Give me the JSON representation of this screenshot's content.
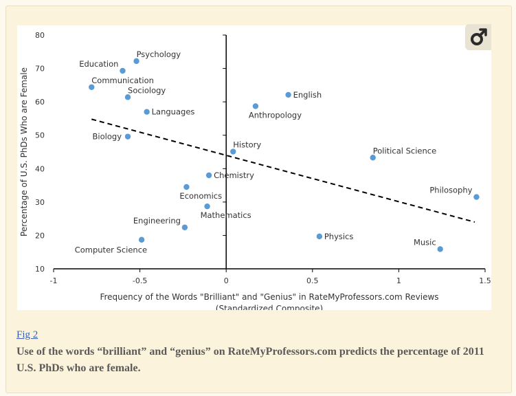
{
  "colors": {
    "point": "#5b9bd5",
    "axis": "#000000",
    "trend": "#000000",
    "caption_text": "#5a5a5a",
    "link": "#3a5ea8"
  },
  "badge": {
    "icon": "external-link-icon"
  },
  "chart_data": {
    "type": "scatter",
    "title": "",
    "xlabel_line1": "Frequency of the Words \"Brilliant\" and \"Genius\" in RateMyProfessors.com Reviews",
    "xlabel_line2": "(Standardized Composite)",
    "ylabel": "Percentage of U.S. PhDs Who are Female",
    "xlim": [
      -1,
      1.5
    ],
    "ylim": [
      10,
      80
    ],
    "xticks": [
      -1,
      -0.5,
      0,
      0.5,
      1,
      1.5
    ],
    "xtick_labels": [
      "-1",
      "-0.5",
      "0",
      "0.5",
      "1",
      "1.5"
    ],
    "yticks": [
      10,
      20,
      30,
      40,
      50,
      60,
      70,
      80
    ],
    "ytick_labels": [
      "10",
      "20",
      "30",
      "40",
      "50",
      "60",
      "70",
      "80"
    ],
    "points": [
      {
        "label": "Psychology",
        "x": -0.52,
        "y": 72.2,
        "anchor": "above-right"
      },
      {
        "label": "Education",
        "x": -0.6,
        "y": 69.3,
        "anchor": "above-left"
      },
      {
        "label": "Communication",
        "x": -0.78,
        "y": 64.4,
        "anchor": "above-right"
      },
      {
        "label": "Sociology",
        "x": -0.57,
        "y": 61.4,
        "anchor": "above-right"
      },
      {
        "label": "Languages",
        "x": -0.46,
        "y": 57.0,
        "anchor": "right"
      },
      {
        "label": "Biology",
        "x": -0.57,
        "y": 49.6,
        "anchor": "left"
      },
      {
        "label": "English",
        "x": 0.36,
        "y": 62.1,
        "anchor": "right"
      },
      {
        "label": "Anthropology",
        "x": 0.17,
        "y": 58.7,
        "anchor": "below-right"
      },
      {
        "label": "History",
        "x": 0.04,
        "y": 45.1,
        "anchor": "above-right"
      },
      {
        "label": "Political Science",
        "x": 0.85,
        "y": 43.3,
        "anchor": "above-right"
      },
      {
        "label": "Chemistry",
        "x": -0.1,
        "y": 38.0,
        "anchor": "right"
      },
      {
        "label": "Economics",
        "x": -0.23,
        "y": 34.5,
        "anchor": "below-right"
      },
      {
        "label": "Mathematics",
        "x": -0.11,
        "y": 28.7,
        "anchor": "below-right"
      },
      {
        "label": "Engineering",
        "x": -0.24,
        "y": 22.4,
        "anchor": "above-left"
      },
      {
        "label": "Computer Science",
        "x": -0.49,
        "y": 18.7,
        "anchor": "below-left"
      },
      {
        "label": "Philosophy",
        "x": 1.45,
        "y": 31.5,
        "anchor": "above-left"
      },
      {
        "label": "Physics",
        "x": 0.54,
        "y": 19.7,
        "anchor": "right"
      },
      {
        "label": "Music",
        "x": 1.24,
        "y": 15.9,
        "anchor": "above-left"
      }
    ],
    "trendline": {
      "x": [
        -0.78,
        1.44
      ],
      "y": [
        54.8,
        24.0
      ],
      "style": "dashed"
    }
  },
  "caption": {
    "fig_link": "Fig 2",
    "text": "Use of the words “brilliant” and “genius” on RateMyProfessors.com predicts the percentage of 2011 U.S. PhDs who are female."
  }
}
